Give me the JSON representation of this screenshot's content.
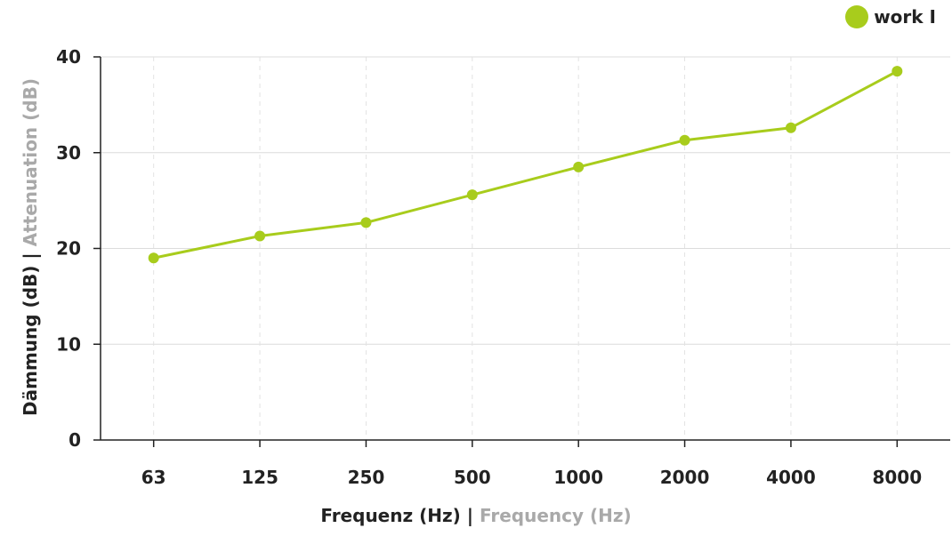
{
  "chart_data": {
    "type": "line",
    "categories": [
      "63",
      "125",
      "250",
      "500",
      "1000",
      "2000",
      "4000",
      "8000"
    ],
    "series": [
      {
        "name": "work I",
        "values": [
          19.0,
          21.3,
          22.7,
          25.6,
          28.5,
          31.3,
          32.6,
          38.5
        ],
        "color": "#a8cc1c"
      }
    ],
    "xlabel_main": "Frequenz (Hz)",
    "xlabel_separator": "|",
    "xlabel_secondary": "Frequency (Hz)",
    "ylabel_main": "Dämmung (dB)",
    "ylabel_separator": "|",
    "ylabel_secondary": "Attenuation (dB)",
    "yticks": [
      "0",
      "10",
      "20",
      "30",
      "40"
    ],
    "ylim": [
      0,
      40
    ],
    "grid": true,
    "legend_position": "top-right"
  },
  "legend": {
    "label": "work I",
    "color": "#a8cc1c"
  }
}
